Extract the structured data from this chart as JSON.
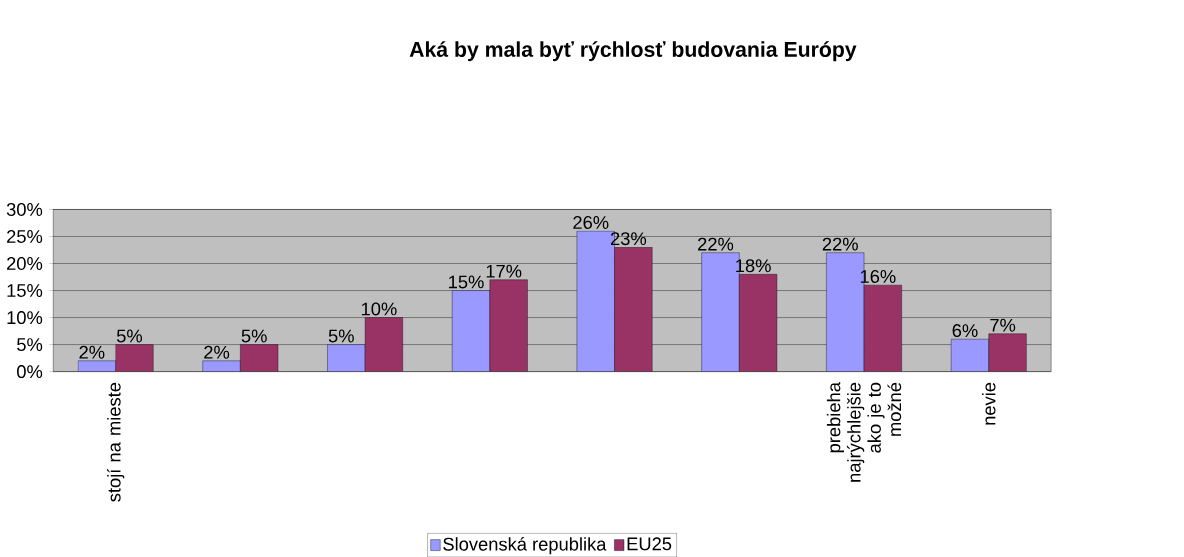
{
  "chart_data": {
    "type": "bar",
    "title": "Aká by mala byť rýchlosť budovania Európy",
    "categories": [
      "stojí na mieste",
      null,
      null,
      null,
      null,
      null,
      "prebieha najrýchlejšie ako je to možné",
      "nevie"
    ],
    "series": [
      {
        "name": "Slovenská republika",
        "color": "#9999ff",
        "values": [
          2,
          2,
          5,
          15,
          26,
          22,
          22,
          6
        ],
        "value_labels": [
          "2%",
          "2%",
          "5%",
          "15%",
          "26%",
          "22%",
          "22%",
          "6%"
        ]
      },
      {
        "name": "EU25",
        "color": "#993366",
        "values": [
          5,
          5,
          10,
          17,
          23,
          18,
          16,
          7
        ],
        "value_labels": [
          "5%",
          "5%",
          "10%",
          "17%",
          "23%",
          "18%",
          "16%",
          "7%"
        ]
      }
    ],
    "ylim": [
      0,
      30
    ],
    "yticks": [
      {
        "value": 0,
        "label": "0%"
      },
      {
        "value": 5,
        "label": "5%"
      },
      {
        "value": 10,
        "label": "10%"
      },
      {
        "value": 15,
        "label": "15%"
      },
      {
        "value": 20,
        "label": "20%"
      },
      {
        "value": 25,
        "label": "25%"
      },
      {
        "value": 30,
        "label": "30%"
      }
    ],
    "grid": "y",
    "legend": "bottom"
  }
}
